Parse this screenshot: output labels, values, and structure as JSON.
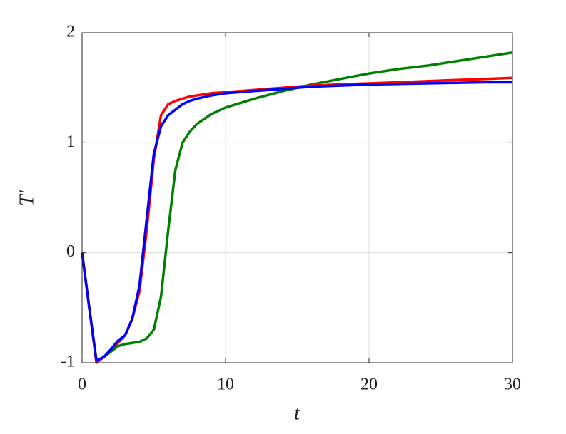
{
  "chart_data": {
    "type": "line",
    "xlabel": "t",
    "ylabel": "T′",
    "x": [
      0,
      0.5,
      1,
      1.5,
      2,
      2.5,
      3,
      3.5,
      4,
      4.5,
      5,
      5.5,
      6,
      6.5,
      7,
      7.5,
      8,
      9,
      10,
      12,
      14,
      16,
      18,
      20,
      22,
      24,
      26,
      28,
      30
    ],
    "series": [
      {
        "color": "#008000",
        "values": [
          0,
          -0.5,
          -0.98,
          -0.95,
          -0.9,
          -0.85,
          -0.83,
          -0.82,
          -0.81,
          -0.78,
          -0.7,
          -0.4,
          0.2,
          0.75,
          1.0,
          1.1,
          1.17,
          1.26,
          1.32,
          1.4,
          1.47,
          1.53,
          1.58,
          1.63,
          1.67,
          1.7,
          1.74,
          1.78,
          1.82
        ]
      },
      {
        "color": "#ff0000",
        "values": [
          0,
          -0.5,
          -1.0,
          -0.95,
          -0.88,
          -0.82,
          -0.75,
          -0.6,
          -0.35,
          0.2,
          0.85,
          1.25,
          1.35,
          1.38,
          1.4,
          1.42,
          1.43,
          1.45,
          1.46,
          1.48,
          1.5,
          1.52,
          1.53,
          1.54,
          1.55,
          1.56,
          1.57,
          1.58,
          1.59
        ]
      },
      {
        "color": "#0000ff",
        "values": [
          0,
          -0.5,
          -0.98,
          -0.95,
          -0.88,
          -0.8,
          -0.75,
          -0.6,
          -0.3,
          0.3,
          0.9,
          1.15,
          1.25,
          1.3,
          1.35,
          1.38,
          1.4,
          1.43,
          1.45,
          1.47,
          1.49,
          1.51,
          1.52,
          1.53,
          1.535,
          1.54,
          1.545,
          1.55,
          1.55
        ]
      }
    ],
    "xlim": [
      0,
      30
    ],
    "xticks": [
      0,
      10,
      20,
      30
    ],
    "ylim": [
      -1,
      2
    ],
    "yticks": [
      -1,
      0,
      1,
      2
    ],
    "grid": true
  }
}
